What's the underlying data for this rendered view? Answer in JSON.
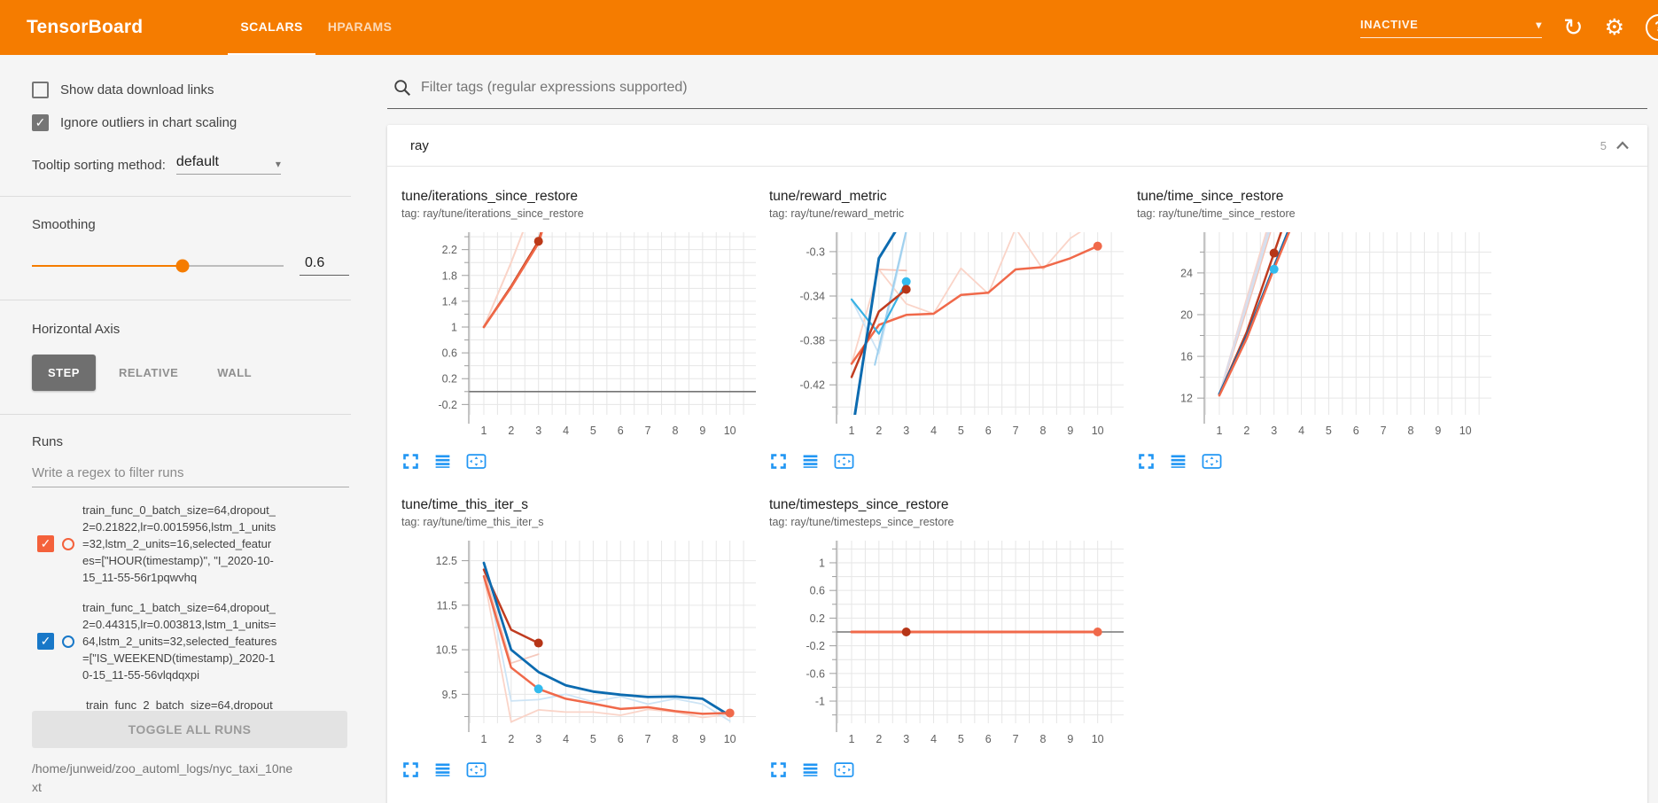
{
  "header": {
    "title": "TensorBoard",
    "tabs": [
      {
        "label": "SCALARS",
        "active": true
      },
      {
        "label": "HPARAMS",
        "active": false
      }
    ],
    "status": "INACTIVE",
    "icons": {
      "dropdown": "caret-down",
      "refresh": "refresh-icon",
      "settings": "gear-icon",
      "help": "help-icon"
    }
  },
  "sidebar": {
    "checkboxes": [
      {
        "label": "Show data download links",
        "checked": false
      },
      {
        "label": "Ignore outliers in chart scaling",
        "checked": true
      }
    ],
    "tooltip_sort": {
      "label": "Tooltip sorting method:",
      "value": "default"
    },
    "smoothing": {
      "label": "Smoothing",
      "value": "0.6",
      "fraction": 0.6,
      "accent": "#f57c00"
    },
    "horizontal_axis": {
      "label": "Horizontal Axis",
      "options": [
        "STEP",
        "RELATIVE",
        "WALL"
      ],
      "selected": "STEP"
    },
    "runs": {
      "label": "Runs",
      "filter_placeholder": "Write a regex to filter runs",
      "items": [
        {
          "name": "train_func_0_batch_size=64,dropout_2=0.21822,lr=0.0015956,lstm_1_units=32,lstm_2_units=16,selected_features=[\"HOUR(timestamp)\", \"I_2020-10-15_11-55-56r1pqwvhq",
          "checked": true,
          "color": "#f4613b"
        },
        {
          "name": "train_func_1_batch_size=64,dropout_2=0.44315,lr=0.003813,lstm_1_units=64,lstm_2_units=32,selected_features=[\"IS_WEEKEND(timestamp)_2020-10-15_11-55-56vlqdqxpi",
          "checked": true,
          "color": "#1878c8"
        },
        {
          "name": "train_func_2_batch_size=64,dropout_2=",
          "partial": true
        }
      ],
      "toggle_all_label": "TOGGLE ALL RUNS",
      "log_dir": "/home/junweid/zoo_automl_logs/nyc_taxi_10next"
    }
  },
  "main": {
    "search_placeholder": "Filter tags (regular expressions supported)",
    "group": {
      "name": "ray",
      "count": "5"
    }
  },
  "chart_data": [
    {
      "type": "line",
      "title": "tune/iterations_since_restore",
      "tag": "tag: ray/tune/iterations_since_restore",
      "xlim": [
        0.45,
        10.95
      ],
      "ylim": [
        -0.36,
        2.47
      ],
      "xticks": [
        1,
        2,
        3,
        4,
        5,
        6,
        7,
        8,
        9,
        10
      ],
      "yticks": [
        2.2,
        1.8,
        1.4,
        1,
        0.6,
        0.2,
        -0.2
      ],
      "ytick_labels": [
        "2.2",
        "1.8",
        "1.4",
        "1",
        "0.6",
        "0.2",
        "-0.2"
      ],
      "zero_line": true,
      "grid": true,
      "legend": "none",
      "series": [
        {
          "name": "train_func_0 (raw)",
          "color": "#fad4c8",
          "width": 2,
          "points": [
            [
              1,
              1
            ],
            [
              2,
              2
            ],
            [
              3,
              3.1
            ]
          ]
        },
        {
          "name": "train_func_2 (smoothed)",
          "color": "#c2401f",
          "width": 2.5,
          "points": [
            [
              1,
              1
            ],
            [
              2,
              1.63
            ],
            [
              3,
              2.33
            ],
            [
              3.6,
              3.2
            ]
          ]
        },
        {
          "name": "train_func_0 (smoothed)",
          "color": "#ef6847",
          "width": 2.5,
          "points": [
            [
              1,
              1
            ],
            [
              2,
              1.615
            ],
            [
              3,
              2.3
            ],
            [
              3.6,
              3.15
            ]
          ]
        }
      ],
      "dots": [
        {
          "x": 3,
          "y": 2.33,
          "color": "#bb3918"
        }
      ]
    },
    {
      "type": "line",
      "title": "tune/reward_metric",
      "tag": "tag: ray/tune/reward_metric",
      "xlim": [
        0.45,
        10.95
      ],
      "ylim": [
        -0.447,
        -0.2825
      ],
      "xticks": [
        1,
        2,
        3,
        4,
        5,
        6,
        7,
        8,
        9,
        10
      ],
      "yticks": [
        -0.3,
        -0.34,
        -0.38,
        -0.42
      ],
      "ytick_labels": [
        "-0.3",
        "-0.34",
        "-0.38",
        "-0.42"
      ],
      "zero_line": false,
      "grid": true,
      "legend": "none",
      "series": [
        {
          "name": "train_func_0 (raw)",
          "color": "#fad4c8",
          "width": 1.8,
          "points": [
            [
              1,
              -0.401
            ],
            [
              2,
              -0.316
            ],
            [
              3,
              -0.347
            ],
            [
              4,
              -0.356
            ],
            [
              5,
              -0.315
            ],
            [
              6,
              -0.338
            ],
            [
              7,
              -0.279
            ],
            [
              8,
              -0.316
            ],
            [
              9,
              -0.288
            ],
            [
              10,
              -0.272
            ]
          ]
        },
        {
          "name": "train_func_2 (raw)",
          "color": "#f6c3b5",
          "width": 1.8,
          "points": [
            [
              2,
              -0.316
            ],
            [
              3,
              -0.317
            ]
          ]
        },
        {
          "name": "train_func_3 (raw)",
          "color": "#cde4f5",
          "width": 1.8,
          "points": [
            [
              1,
              -0.343
            ],
            [
              2,
              -0.392
            ],
            [
              3,
              -0.283
            ]
          ]
        },
        {
          "name": "train_func_1 (raw)",
          "color": "#9fd0ee",
          "width": 2,
          "points": [
            [
              1.85,
              -0.402
            ],
            [
              3,
              -0.281
            ]
          ]
        },
        {
          "name": "train_func_0 (smoothed)",
          "color": "#f0694a",
          "width": 2.5,
          "points": [
            [
              1,
              -0.401
            ],
            [
              2,
              -0.366
            ],
            [
              3,
              -0.357
            ],
            [
              4,
              -0.356
            ],
            [
              5,
              -0.339
            ],
            [
              6,
              -0.337
            ],
            [
              7,
              -0.316
            ],
            [
              8,
              -0.314
            ],
            [
              9,
              -0.306
            ],
            [
              10,
              -0.295
            ]
          ]
        },
        {
          "name": "train_func_3 (smoothed)",
          "color": "#39b1e4",
          "width": 2.2,
          "points": [
            [
              1,
              -0.343
            ],
            [
              2,
              -0.374
            ],
            [
              3,
              -0.327
            ]
          ]
        },
        {
          "name": "train_func_2 (smoothed)",
          "color": "#c03c20",
          "width": 2.5,
          "points": [
            [
              1,
              -0.413
            ],
            [
              2,
              -0.354
            ],
            [
              3,
              -0.334
            ]
          ]
        },
        {
          "name": "train_func_1 (smoothed)",
          "color": "#0c6bb0",
          "width": 3,
          "points": [
            [
              1.12,
              -0.447
            ],
            [
              2,
              -0.306
            ],
            [
              2.6,
              -0.282
            ]
          ]
        }
      ],
      "dots": [
        {
          "x": 3,
          "y": -0.327,
          "color": "#33bbee"
        },
        {
          "x": 3,
          "y": -0.334,
          "color": "#b63517"
        },
        {
          "x": 10,
          "y": -0.295,
          "color": "#f0694a"
        }
      ]
    },
    {
      "type": "line",
      "title": "tune/time_since_restore",
      "tag": "tag: ray/tune/time_since_restore",
      "xlim": [
        0.45,
        10.95
      ],
      "ylim": [
        10.4,
        27.9
      ],
      "xticks": [
        1,
        2,
        3,
        4,
        5,
        6,
        7,
        8,
        9,
        10
      ],
      "yticks": [
        24,
        20,
        16,
        12
      ],
      "ytick_labels": [
        "24",
        "20",
        "16",
        "12"
      ],
      "zero_line": false,
      "grid": true,
      "legend": "none",
      "series": [
        {
          "name": "train_func_0 (raw)",
          "color": "#fad4c8",
          "width": 2,
          "points": [
            [
              1,
              12.3
            ],
            [
              2,
              21.5
            ],
            [
              2.75,
              28.2
            ]
          ]
        },
        {
          "name": "train_func_2 (raw)",
          "color": "#f6c3b5",
          "width": 2,
          "points": [
            [
              1,
              12.3
            ],
            [
              2,
              20.5
            ],
            [
              2.9,
              28.2
            ]
          ]
        },
        {
          "name": "train_func_1 (raw)",
          "color": "#cde4f5",
          "width": 2,
          "points": [
            [
              1,
              12.4
            ],
            [
              2,
              20.9
            ],
            [
              2.85,
              28.2
            ]
          ]
        },
        {
          "name": "train_func_3 (raw)",
          "color": "#dcdcea",
          "width": 2,
          "points": [
            [
              1,
              12.4
            ],
            [
              2,
              21.2
            ],
            [
              2.8,
              28.2
            ]
          ]
        },
        {
          "name": "train_func_2 (smoothed)",
          "color": "#c03c20",
          "width": 2.5,
          "points": [
            [
              1,
              12.35
            ],
            [
              2,
              18.3
            ],
            [
              3,
              25.9
            ],
            [
              3.3,
              28.2
            ]
          ]
        },
        {
          "name": "train_func_1 (smoothed)",
          "color": "#0c6bb0",
          "width": 2.8,
          "points": [
            [
              1,
              12.4
            ],
            [
              2,
              17.9
            ],
            [
              3,
              24.6
            ],
            [
              3.55,
              28.2
            ]
          ]
        },
        {
          "name": "train_func_0 (smoothed)",
          "color": "#f0694a",
          "width": 2.5,
          "points": [
            [
              1,
              12.25
            ],
            [
              2,
              17.7
            ],
            [
              3,
              24.4
            ],
            [
              3.6,
              28.2
            ]
          ]
        }
      ],
      "dots": [
        {
          "x": 3,
          "y": 25.9,
          "color": "#b63517"
        },
        {
          "x": 3,
          "y": 24.35,
          "color": "#33bbee"
        }
      ]
    },
    {
      "type": "line",
      "title": "tune/time_this_iter_s",
      "tag": "tag: ray/tune/time_this_iter_s",
      "xlim": [
        0.45,
        10.95
      ],
      "ylim": [
        8.85,
        12.95
      ],
      "xticks": [
        1,
        2,
        3,
        4,
        5,
        6,
        7,
        8,
        9,
        10
      ],
      "yticks": [
        12.5,
        11.5,
        10.5,
        9.5
      ],
      "ytick_labels": [
        "12.5",
        "11.5",
        "10.5",
        "9.5"
      ],
      "zero_line": false,
      "grid": true,
      "legend": "none",
      "series": [
        {
          "name": "train_func_0 (raw)",
          "color": "#fad4c8",
          "width": 1.8,
          "points": [
            [
              1,
              12.15
            ],
            [
              2,
              8.88
            ],
            [
              3,
              9.15
            ],
            [
              4,
              9.1
            ],
            [
              5,
              9.1
            ],
            [
              6,
              9.03
            ],
            [
              7,
              9.16
            ],
            [
              8,
              9.1
            ],
            [
              9,
              8.98
            ],
            [
              10,
              9.05
            ]
          ]
        },
        {
          "name": "train_func_1 (raw)",
          "color": "#cde4f5",
          "width": 1.8,
          "points": [
            [
              1,
              12.45
            ],
            [
              2,
              9.35
            ],
            [
              3,
              9.38
            ],
            [
              4,
              9.5
            ],
            [
              5,
              9.33
            ],
            [
              6,
              9.45
            ],
            [
              7,
              9.28
            ],
            [
              8,
              9.4
            ],
            [
              9,
              9.28
            ],
            [
              10,
              8.9
            ]
          ]
        },
        {
          "name": "train_func_2 (raw)",
          "color": "#f5c9bd",
          "width": 1.8,
          "points": [
            [
              1,
              12.3
            ],
            [
              2,
              10.2
            ],
            [
              3,
              10.4
            ]
          ]
        },
        {
          "name": "train_func_2 (smoothed)",
          "color": "#c03c20",
          "width": 2.5,
          "points": [
            [
              1,
              12.3
            ],
            [
              2,
              10.95
            ],
            [
              3,
              10.65
            ]
          ]
        },
        {
          "name": "train_func_1 (smoothed)",
          "color": "#0c6bb0",
          "width": 2.8,
          "points": [
            [
              1,
              12.45
            ],
            [
              2,
              10.5
            ],
            [
              3,
              10.0
            ],
            [
              4,
              9.7
            ],
            [
              5,
              9.56
            ],
            [
              6,
              9.49
            ],
            [
              7,
              9.44
            ],
            [
              8,
              9.45
            ],
            [
              9,
              9.4
            ],
            [
              10,
              9.02
            ]
          ]
        },
        {
          "name": "train_func_0 (smoothed)",
          "color": "#f0694a",
          "width": 2.5,
          "points": [
            [
              1,
              12.15
            ],
            [
              2,
              10.1
            ],
            [
              3,
              9.62
            ],
            [
              4,
              9.4
            ],
            [
              5,
              9.29
            ],
            [
              6,
              9.17
            ],
            [
              7,
              9.21
            ],
            [
              8,
              9.12
            ],
            [
              9,
              9.06
            ],
            [
              10,
              9.08
            ]
          ]
        }
      ],
      "dots": [
        {
          "x": 3,
          "y": 10.65,
          "color": "#b63517"
        },
        {
          "x": 3,
          "y": 9.62,
          "color": "#33bbee"
        },
        {
          "x": 10,
          "y": 9.08,
          "color": "#f0694a"
        }
      ]
    },
    {
      "type": "line",
      "title": "tune/timesteps_since_restore",
      "tag": "tag: ray/tune/timesteps_since_restore",
      "xlim": [
        0.45,
        10.95
      ],
      "ylim": [
        -1.32,
        1.32
      ],
      "xticks": [
        1,
        2,
        3,
        4,
        5,
        6,
        7,
        8,
        9,
        10
      ],
      "yticks": [
        1,
        0.6,
        0.2,
        -0.2,
        -0.6,
        -1
      ],
      "ytick_labels": [
        "1",
        "0.6",
        "0.2",
        "-0.2",
        "-0.6",
        "-1"
      ],
      "zero_line": true,
      "grid": true,
      "legend": "none",
      "series": [
        {
          "name": "train_func_2 (smoothed)",
          "color": "#c03c20",
          "width": 2.5,
          "points": [
            [
              1,
              0
            ],
            [
              3,
              0
            ]
          ]
        },
        {
          "name": "train_func_0 (smoothed)",
          "color": "#f0694a",
          "width": 3,
          "points": [
            [
              1,
              0
            ],
            [
              10,
              0
            ]
          ]
        }
      ],
      "dots": [
        {
          "x": 3,
          "y": 0,
          "color": "#b63517"
        },
        {
          "x": 10,
          "y": 0,
          "color": "#f0694a"
        }
      ]
    }
  ]
}
